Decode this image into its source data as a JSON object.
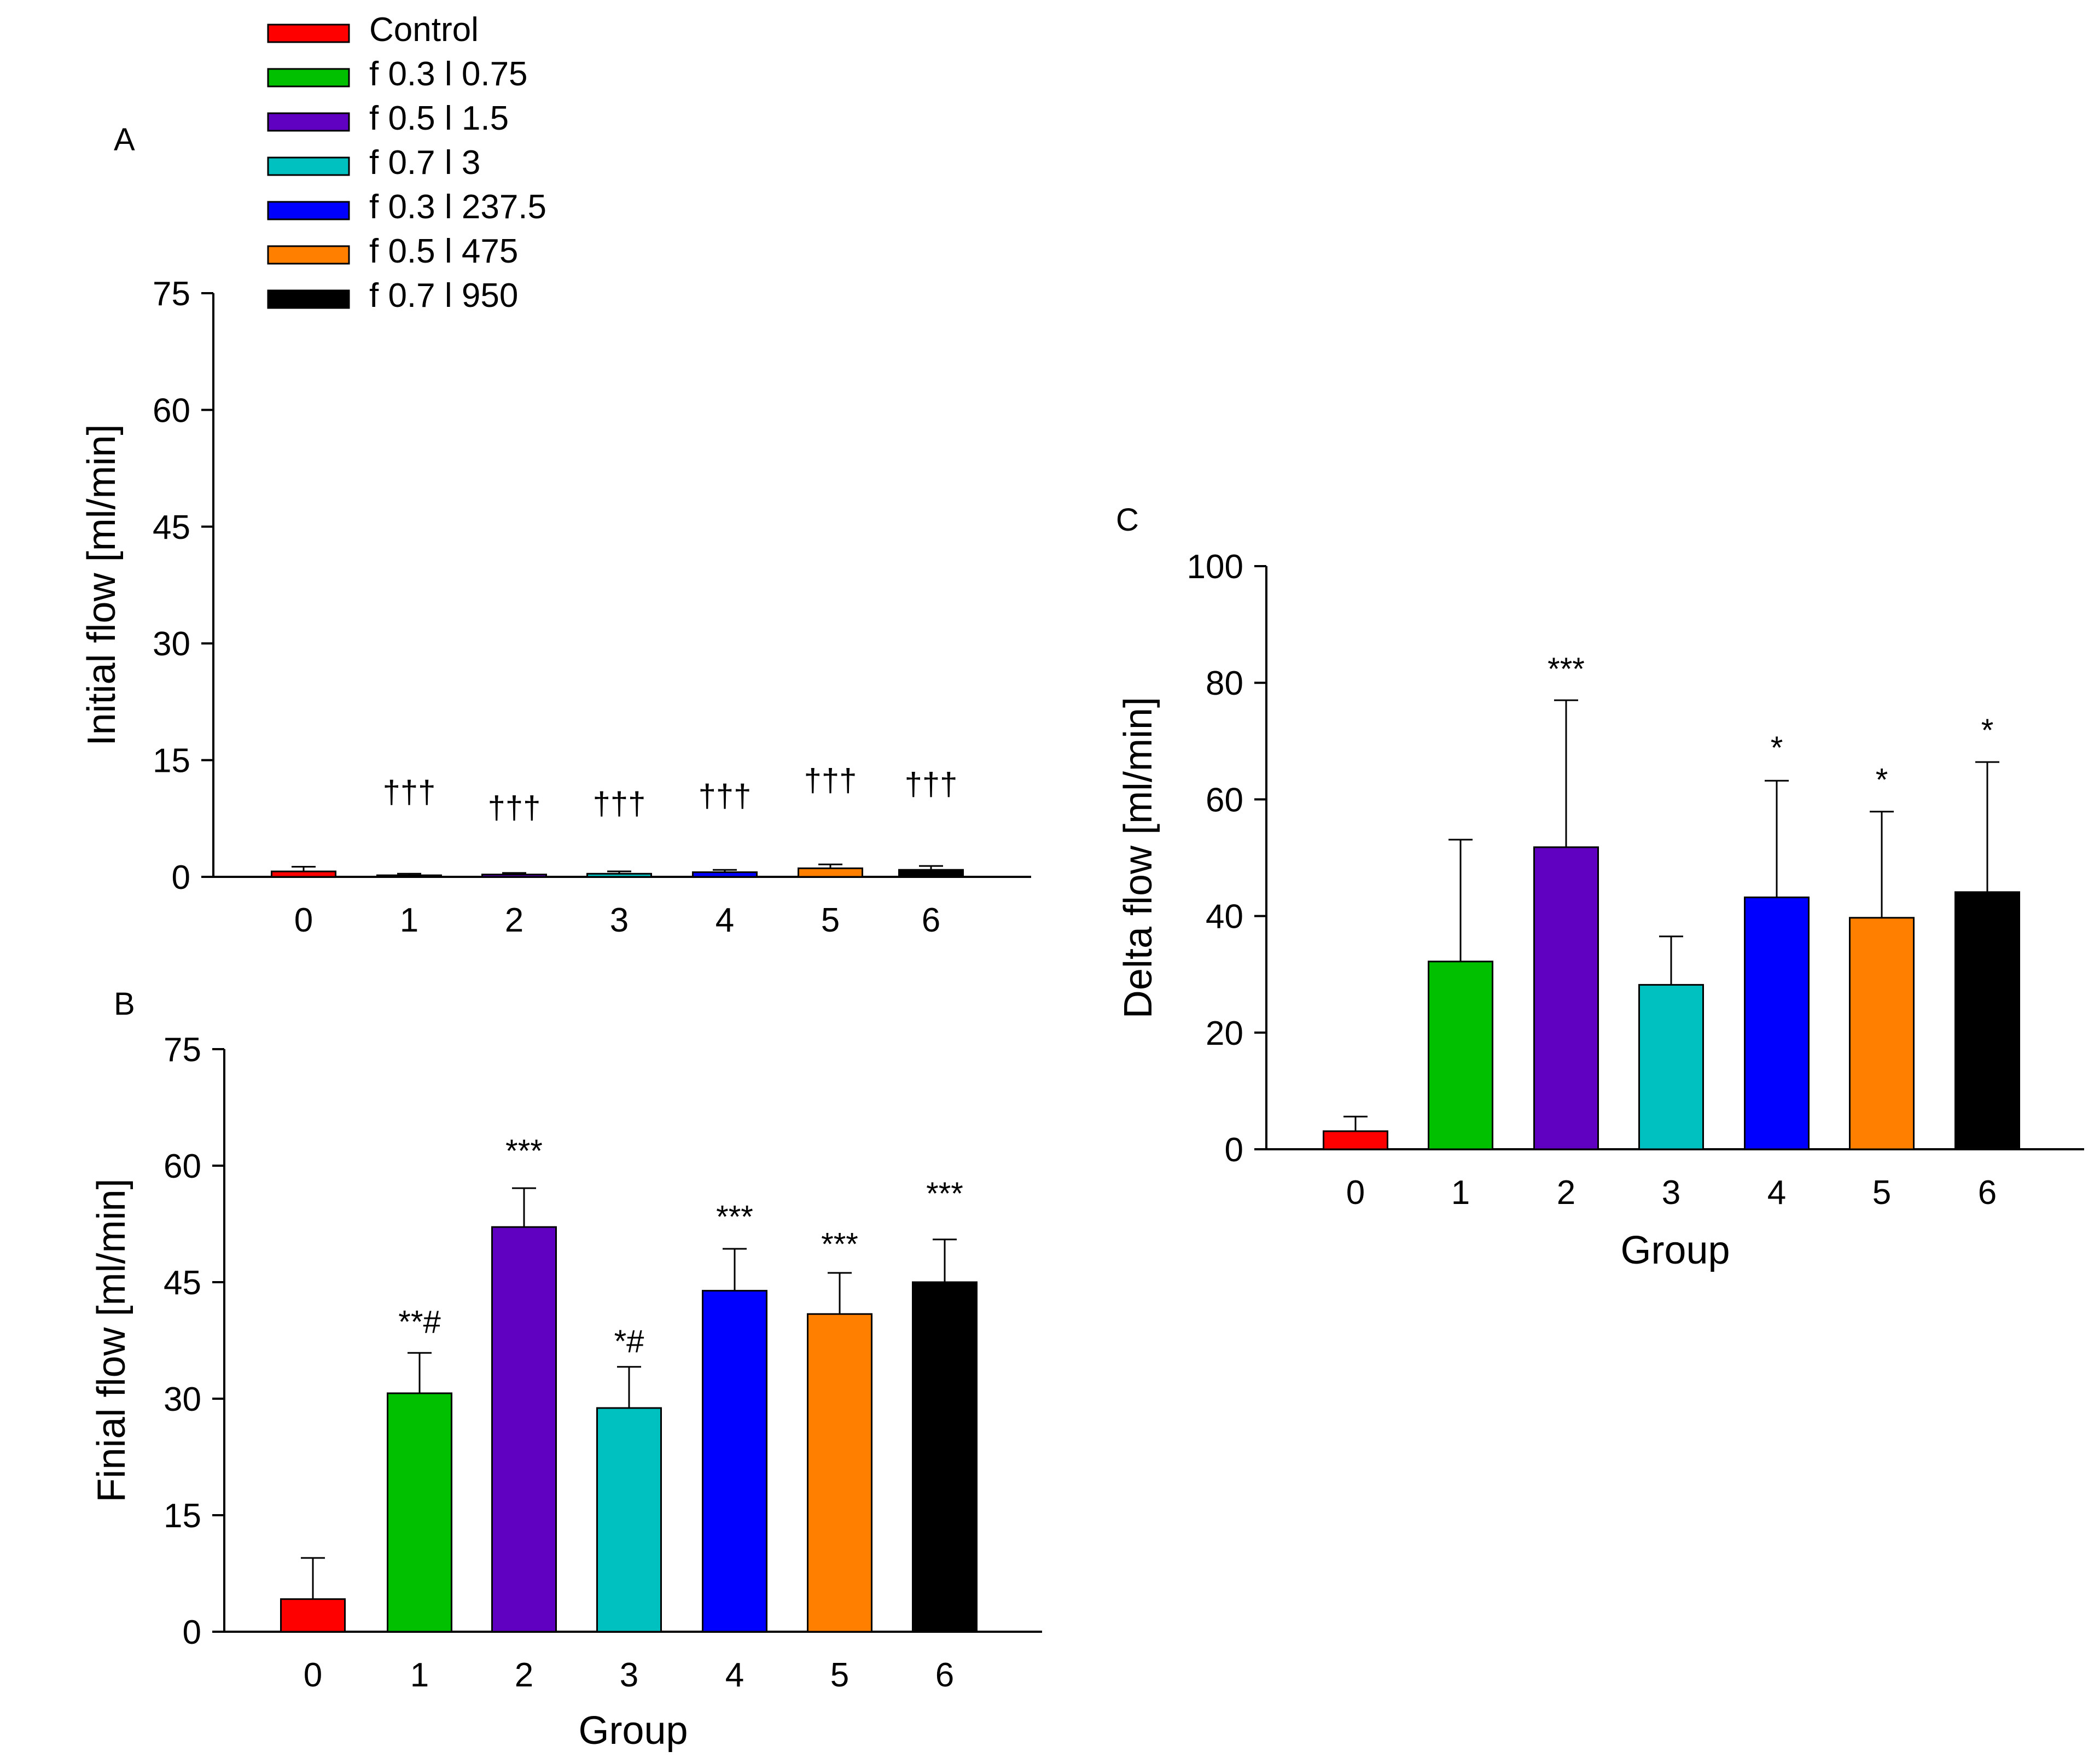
{
  "colors": {
    "Control": "#ff0000",
    "f 0.3 l 0.75": "#00c000",
    "f 0.5 l 1.5": "#6000c0",
    "f 0.7 l 3": "#00c0c0",
    "f 0.3 l 237.5": "#0000ff",
    "f 0.5 l 475": "#ff8000",
    "f 0.7 l 950": "#000000"
  },
  "legend": [
    "Control",
    "f 0.3 l 0.75",
    "f 0.5 l 1.5",
    "f 0.7 l 3",
    "f 0.3 l 237.5",
    "f 0.5 l 475",
    "f 0.7 l 950"
  ],
  "chart_data": [
    {
      "panel": "A",
      "type": "bar",
      "title": "",
      "xlabel": "",
      "ylabel": "Initial flow [ml/min]",
      "ylim": [
        0,
        75
      ],
      "yticks": [
        0,
        15,
        30,
        45,
        60,
        75
      ],
      "categories": [
        "0",
        "1",
        "2",
        "3",
        "4",
        "5",
        "6"
      ],
      "values": [
        0.7,
        0.2,
        0.3,
        0.4,
        0.6,
        1.1,
        0.9
      ],
      "errors": [
        0.6,
        0.2,
        0.2,
        0.3,
        0.3,
        0.5,
        0.5
      ],
      "annotations": [
        "",
        "†††",
        "†††",
        "†††",
        "†††",
        "†††",
        "†††"
      ],
      "annotation_levels": [
        0,
        9.5,
        7.5,
        8.0,
        9.0,
        11.0,
        10.5
      ]
    },
    {
      "panel": "B",
      "type": "bar",
      "title": "",
      "xlabel": "Group",
      "ylabel": "Finial flow [ml/min]",
      "ylim": [
        0,
        75
      ],
      "yticks": [
        0,
        15,
        30,
        45,
        60,
        75
      ],
      "categories": [
        "0",
        "1",
        "2",
        "3",
        "4",
        "5",
        "6"
      ],
      "values": [
        4.2,
        30.7,
        52.1,
        28.8,
        43.9,
        40.9,
        45.0
      ],
      "errors": [
        5.3,
        5.2,
        5.0,
        5.3,
        5.4,
        5.3,
        5.5
      ],
      "annotations": [
        "",
        "**#",
        "***",
        "*#",
        "***",
        "***",
        "***"
      ],
      "annotation_levels": [
        0,
        38.5,
        60.5,
        36.0,
        52.0,
        48.5,
        55.0
      ]
    },
    {
      "panel": "C",
      "type": "bar",
      "title": "",
      "xlabel": "Group",
      "ylabel": "Delta flow [ml/min]",
      "ylim": [
        0,
        100
      ],
      "yticks": [
        0,
        20,
        40,
        60,
        80,
        100
      ],
      "categories": [
        "0",
        "1",
        "2",
        "3",
        "4",
        "5",
        "6"
      ],
      "values": [
        3.1,
        32.2,
        51.8,
        28.2,
        43.2,
        39.7,
        44.1
      ],
      "errors": [
        2.5,
        20.9,
        25.2,
        8.3,
        20.0,
        18.2,
        22.3
      ],
      "annotations": [
        "",
        "",
        "***",
        "",
        "*",
        "*",
        "*"
      ],
      "annotation_levels": [
        0,
        0,
        80.5,
        0,
        67.0,
        61.5,
        70.0
      ]
    }
  ]
}
